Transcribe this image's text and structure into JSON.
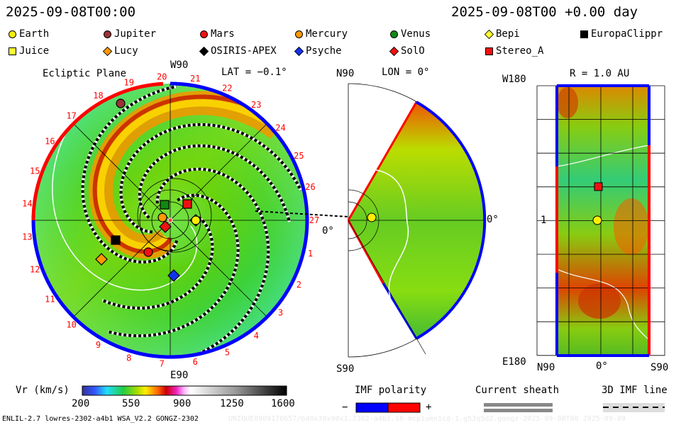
{
  "header": {
    "left_time": "2025-09-08T00:00",
    "right_time": "2025-09-08T00 +0.00 day"
  },
  "legend": [
    {
      "name": "Earth",
      "shape": "circle",
      "color": "#ffee00"
    },
    {
      "name": "Jupiter",
      "shape": "circle",
      "color": "#993333"
    },
    {
      "name": "Mars",
      "shape": "circle",
      "color": "#ee1111"
    },
    {
      "name": "Mercury",
      "shape": "circle",
      "color": "#ff9900"
    },
    {
      "name": "Venus",
      "shape": "circle",
      "color": "#118811"
    },
    {
      "name": "Bepi",
      "shape": "diamond",
      "color": "#ffff33"
    },
    {
      "name": "EuropaClippr",
      "shape": "square",
      "color": "#000000"
    },
    {
      "name": "Juice",
      "shape": "square",
      "color": "#ffff33"
    },
    {
      "name": "Lucy",
      "shape": "diamond",
      "color": "#ff9900"
    },
    {
      "name": "OSIRIS-APEX",
      "shape": "diamond",
      "color": "#000000"
    },
    {
      "name": "Psyche",
      "shape": "diamond",
      "color": "#1133ee"
    },
    {
      "name": "SolO",
      "shape": "diamond",
      "color": "#ee1111"
    },
    {
      "name": "Stereo_A",
      "shape": "square",
      "color": "#ee1111"
    }
  ],
  "ecliptic": {
    "title": "Ecliptic Plane",
    "top": "W90",
    "lat": "LAT = −0.1°",
    "right": "0°",
    "bottom": "E90",
    "rim_labels": [
      "1",
      "2",
      "3",
      "4",
      "5",
      "6",
      "7",
      "8",
      "9",
      "10",
      "11",
      "12",
      "13",
      "14",
      "15",
      "16",
      "17",
      "18",
      "19",
      "20",
      "21",
      "22",
      "23",
      "24",
      "25",
      "26",
      "27"
    ]
  },
  "meridional": {
    "top": "N90",
    "lon": "LON = 0°",
    "right": "0°",
    "bottom": "S90"
  },
  "sphere": {
    "title": "R = 1.0 AU",
    "top_left": "W180",
    "mid_left": "1",
    "bottom_left": "E180",
    "x_labels": [
      "N90",
      "0°",
      "S90"
    ]
  },
  "colorbar": {
    "label": "Vr (km/s)",
    "ticks": [
      "200",
      "550",
      "900",
      "1250",
      "1600"
    ]
  },
  "imf": {
    "label": "IMF polarity",
    "minus": "−",
    "plus": "+",
    "neg_color": "#0000ff",
    "pos_color": "#ff0000"
  },
  "sheath": {
    "label": "Current sheath"
  },
  "imfline": {
    "label": "3D IMF line"
  },
  "footer": {
    "model": "ENLIL-2.7 lowres-2302-a4b1 WSA_V2.2 GONGZ-2302",
    "run_id": "UNIQUE0909170657/640x30x90x1.2302-a4b1.16-mcp1umn1cd-1.g53q5d2.gongz-2025-09-08T00   2025-09-09"
  }
}
